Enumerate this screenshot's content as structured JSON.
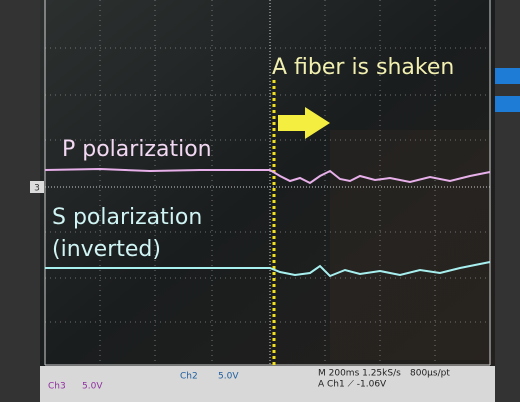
{
  "annotations": {
    "event": "A fiber is shaken",
    "p_label": "P polarization",
    "s_label": "S polarization",
    "s_note": "(inverted)"
  },
  "scope": {
    "ch_marker": "3",
    "ch2": "Ch2",
    "ch2_scale": "5.0V",
    "ch3": "Ch3",
    "ch3_scale": "5.0V",
    "timebase": "M 200ms 1.25kS/s",
    "record": "800µs/pt",
    "trigger": "A Ch1 ⟋ -1.06V"
  }
}
